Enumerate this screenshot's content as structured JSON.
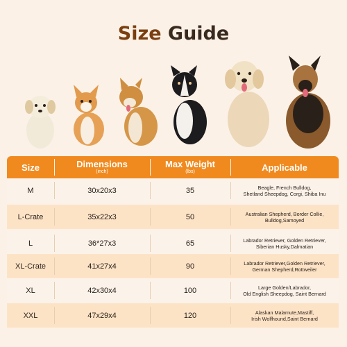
{
  "title": {
    "word1": "Size",
    "word2": "Guide"
  },
  "table": {
    "headers": {
      "size": "Size",
      "dimensions": "Dimensions",
      "dimensions_unit": "(inch)",
      "weight": "Max Weight",
      "weight_unit": "(lbs)",
      "applicable": "Applicable"
    },
    "rows": [
      {
        "size": "M",
        "dimensions": "30x20x3",
        "weight": "35",
        "applicable_1": "Beagle, French Bulldog,",
        "applicable_2": "Shetland Sheepdog, Corgi, Shiba Inu"
      },
      {
        "size": "L-Crate",
        "dimensions": "35x22x3",
        "weight": "50",
        "applicable_1": "Australian Shepherd, Border Collie,",
        "applicable_2": "Bulldog,Samoyed"
      },
      {
        "size": "L",
        "dimensions": "36*27x3",
        "weight": "65",
        "applicable_1": "Labrador Retriever, Golden Retriever,",
        "applicable_2": "Siberian Husky,Dalmatian"
      },
      {
        "size": "XL-Crate",
        "dimensions": "41x27x4",
        "weight": "90",
        "applicable_1": "Labrador Retriever,Golden Retriever,",
        "applicable_2": "German Shepherd,Rottweiler"
      },
      {
        "size": "XL",
        "dimensions": "42x30x4",
        "weight": "100",
        "applicable_1": "Large Golden/Labrador,",
        "applicable_2": "Old English Sheepdog, Saint Bernard"
      },
      {
        "size": "XXL",
        "dimensions": "47x29x4",
        "weight": "120",
        "applicable_1": "Alaskan Malamute,Mastiff,",
        "applicable_2": "Irish Wolfhound,Saint Bernard"
      }
    ]
  },
  "colors": {
    "header": "#f08a1f",
    "row_alt": "#fde3c6",
    "row_plain": "#fbf3ea",
    "title_brown": "#7a3f10"
  },
  "images": [
    "puppy-illustration",
    "corgi-illustration",
    "shiba-inu-illustration",
    "border-collie-illustration",
    "golden-retriever-illustration",
    "german-shepherd-illustration"
  ]
}
